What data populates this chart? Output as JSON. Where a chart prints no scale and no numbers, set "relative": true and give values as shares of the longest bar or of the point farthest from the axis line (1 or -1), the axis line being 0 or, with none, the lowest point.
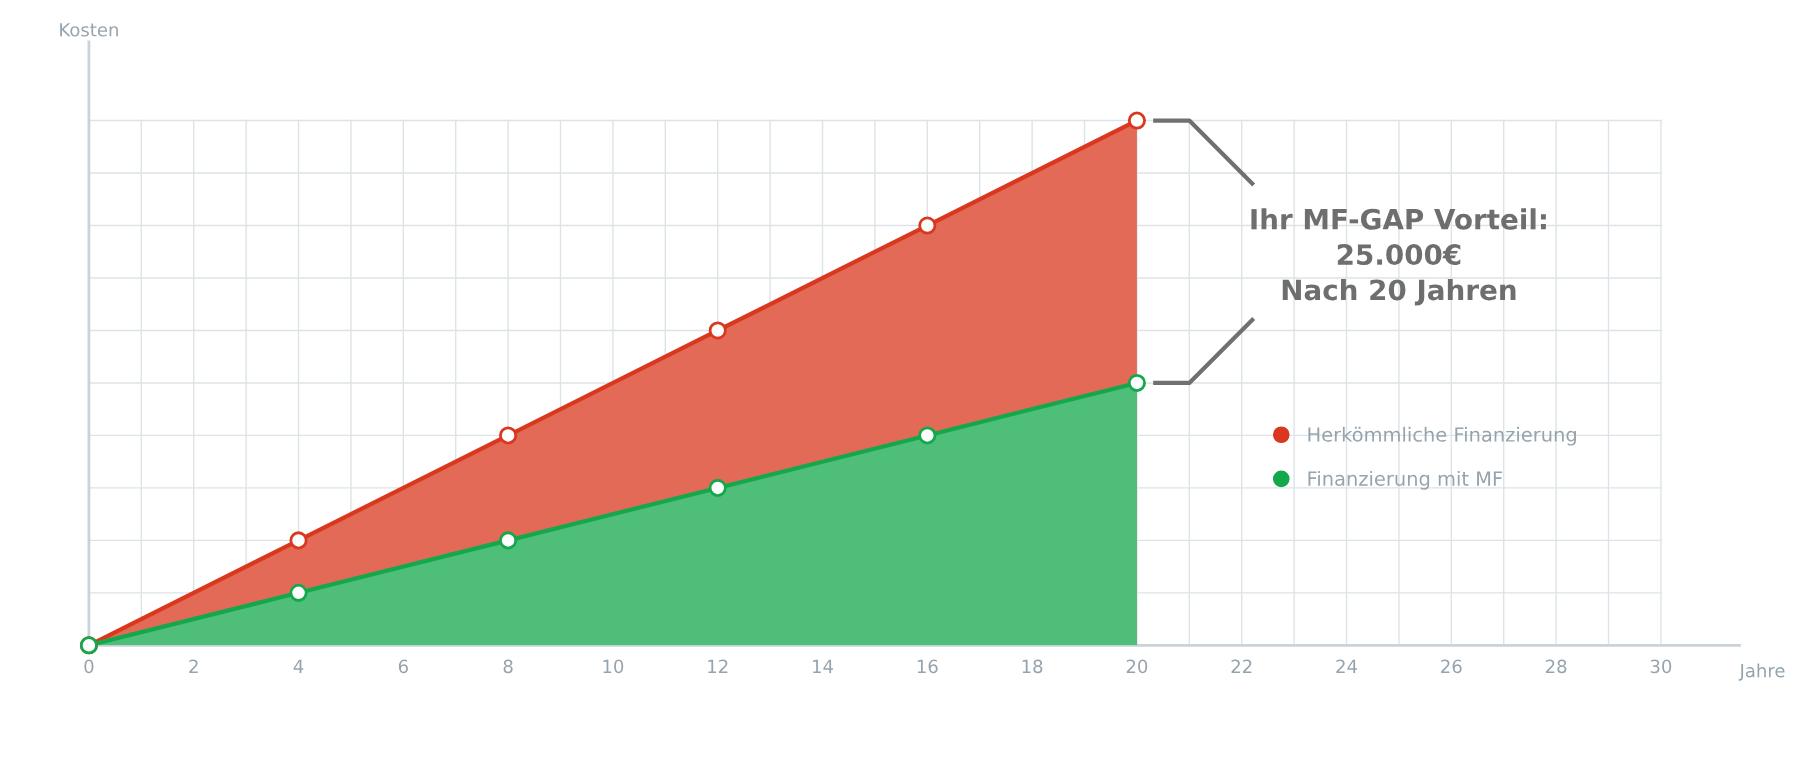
{
  "chart_data": {
    "type": "area",
    "relative": true,
    "xlabel": "Jahre",
    "ylabel": "Kosten",
    "x": [
      0,
      4,
      8,
      12,
      16,
      20
    ],
    "xlim": [
      0,
      31.5
    ],
    "xticks": [
      0,
      2,
      4,
      6,
      8,
      10,
      12,
      14,
      16,
      18,
      20,
      22,
      24,
      26,
      28,
      30
    ],
    "series": [
      {
        "name": "Herkömmliche Finanzierung",
        "color": "#d9381e",
        "values": [
          0,
          0.2,
          0.4,
          0.6,
          0.8,
          1
        ]
      },
      {
        "name": "Finanzierung mit MF",
        "color": "#14a84c",
        "values": [
          0,
          0.1,
          0.2,
          0.3,
          0.4,
          0.5
        ]
      }
    ],
    "marker": "circle",
    "grid": true,
    "legend": "right",
    "annotations": [
      "Ihr MF-GAP Vorteil:\n25.000€\nNach 20 Jahren"
    ]
  }
}
